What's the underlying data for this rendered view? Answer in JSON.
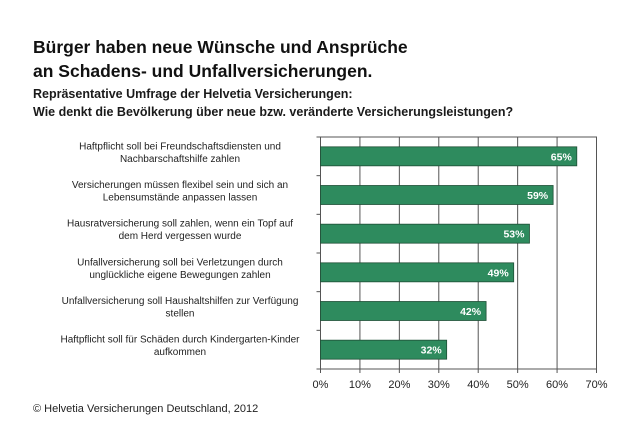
{
  "chart_data": {
    "type": "bar",
    "orientation": "horizontal",
    "title": [
      "Bürger haben neue Wünsche und Ansprüche",
      "an Schadens- und Unfallversicherungen."
    ],
    "subtitle": [
      "Repräsentative Umfrage der Helvetia Versicherungen:",
      "Wie denkt die Bevölkerung über neue bzw. veränderte Versicherungsleistungen?"
    ],
    "categories": [
      [
        "Haftpflicht soll bei Freundschaftsdiensten und",
        "Nachbarschaftshilfe zahlen"
      ],
      [
        "Versicherungen müssen flexibel sein und sich an",
        "Lebensumstände anpassen lassen"
      ],
      [
        "Hausratversicherung soll zahlen, wenn ein Topf auf",
        "dem Herd vergessen wurde"
      ],
      [
        "Unfallversicherung soll bei Verletzungen durch",
        "unglückliche eigene Bewegungen zahlen"
      ],
      [
        "Unfallversicherung soll Haushaltshilfen zur Verfügung",
        "stellen"
      ],
      [
        "Haftpflicht soll für Schäden durch Kindergarten-Kinder",
        "aufkommen"
      ]
    ],
    "values": [
      65,
      59,
      53,
      49,
      42,
      32
    ],
    "data_labels": [
      "65%",
      "59%",
      "53%",
      "49%",
      "42%",
      "32%"
    ],
    "xlim": [
      0,
      70
    ],
    "xticks": [
      0,
      10,
      20,
      30,
      40,
      50,
      60,
      70
    ],
    "xtick_labels": [
      "0%",
      "10%",
      "20%",
      "30%",
      "40%",
      "50%",
      "60%",
      "70%"
    ],
    "xlabel": "",
    "ylabel": "",
    "grid": true,
    "bar_color": "#2e8b5e",
    "footer": "© Helvetia Versicherungen Deutschland, 2012"
  }
}
